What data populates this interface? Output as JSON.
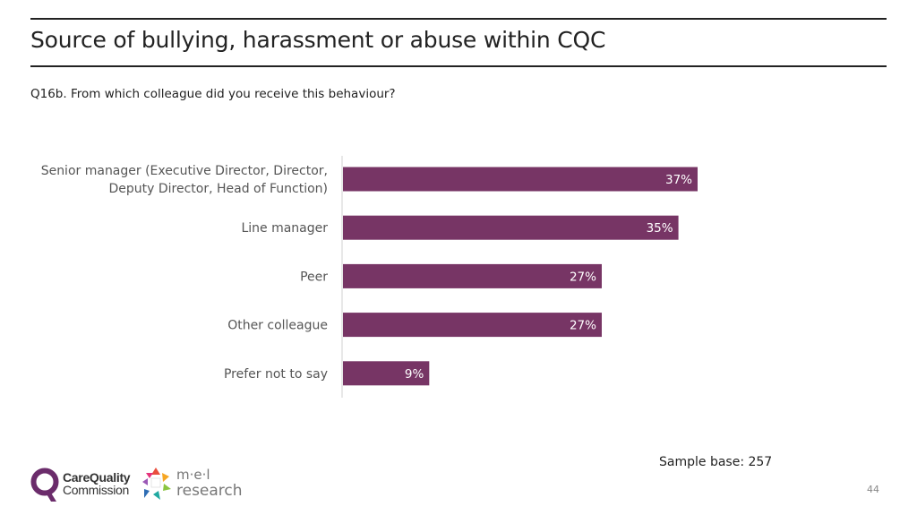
{
  "header": {
    "title": "Source of bullying, harassment or abuse within CQC",
    "question": "Q16b. From which colleague did you receive this behaviour?"
  },
  "chart_data": {
    "type": "bar",
    "orientation": "horizontal",
    "categories": [
      [
        "Senior manager (Executive Director, Director,",
        "Deputy Director, Head of Function)"
      ],
      [
        "Line manager"
      ],
      [
        "Peer"
      ],
      [
        "Other colleague"
      ],
      [
        "Prefer not to say"
      ]
    ],
    "values": [
      37,
      35,
      27,
      27,
      9
    ],
    "value_labels": [
      "37%",
      "35%",
      "27%",
      "27%",
      "9%"
    ],
    "bar_color": "#773565",
    "label_color": "#ffffff",
    "xlim": [
      0,
      100
    ],
    "grid": false
  },
  "footer": {
    "sample_base": "Sample base: 257",
    "page_number": "44",
    "logo_cqc_line1": "CareQuality",
    "logo_cqc_line2": "Commission",
    "logo_mel_line1": "m·e·l",
    "logo_mel_line2": "research",
    "cqc_color": "#6b2c6b"
  }
}
